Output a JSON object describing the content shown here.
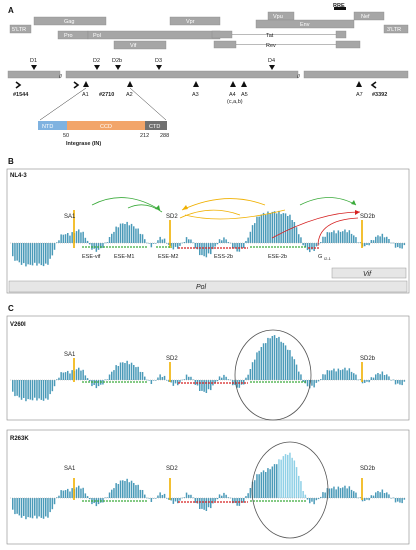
{
  "panels": {
    "a": "A",
    "b": "B",
    "c": "C"
  },
  "genes": {
    "ltr5": "5'LTR",
    "gag": "Gag",
    "pro": "Pro",
    "pol": "Pol",
    "vif": "Vif",
    "vpr": "Vpr",
    "vpu": "Vpu",
    "env": "Env",
    "nef": "Nef",
    "rre": "RRE",
    "tat": "Tat",
    "rev": "Rev",
    "ltr3": "3'LTR"
  },
  "donors": [
    "D1",
    "D2",
    "D2b",
    "D3",
    "D4"
  ],
  "acceptors": [
    "A1",
    "A2",
    "A3",
    "A4\n(c,a,b)",
    "A5",
    "A7"
  ],
  "acceptor_labels": {
    "a1": "A1",
    "a2": "A2",
    "a3": "A3",
    "a4": "A4",
    "a4sub": "(c,a,b)",
    "a5": "A5",
    "a7": "A7"
  },
  "primers": {
    "p1544": "#1544",
    "p2710": "#2710",
    "p3392": "#3392"
  },
  "integrase": {
    "title": "Integrase (IN)",
    "domains": [
      "NTD",
      "CCD",
      "CTD"
    ],
    "ticks": [
      "50",
      "212",
      "288"
    ]
  },
  "plots": [
    {
      "label": "NL4-3",
      "sites": {
        "sa1": "SA1",
        "sd2": "SD2",
        "sd2b": "SD2b"
      },
      "elements": {
        "ese_vif": "ESE-vif",
        "ese_m1": "ESE-M1",
        "ese_m2": "ESE-M2",
        "ess_2b": "ESS-2b",
        "ese_2b": "ESE-2b",
        "g": "G",
        "g_sub": "I2-1"
      },
      "bands": {
        "pol": "Pol",
        "vif": "Vif"
      }
    },
    {
      "label": "V260I",
      "sites": {
        "sa1": "SA1",
        "sd2": "SD2",
        "sd2b": "SD2b"
      }
    },
    {
      "label": "R263K",
      "sites": {
        "sa1": "SA1",
        "sd2": "SD2",
        "sd2b": "SD2b"
      }
    }
  ],
  "colors": {
    "bar": "#4a9ab8",
    "bar_highlight": "#8fd0e6",
    "splice_site": "#f0b000",
    "green": "#3aaa3a",
    "red": "#d52020",
    "ntd": "#7fb2e0",
    "ccd": "#f2a56a",
    "ctd": "#707070"
  }
}
